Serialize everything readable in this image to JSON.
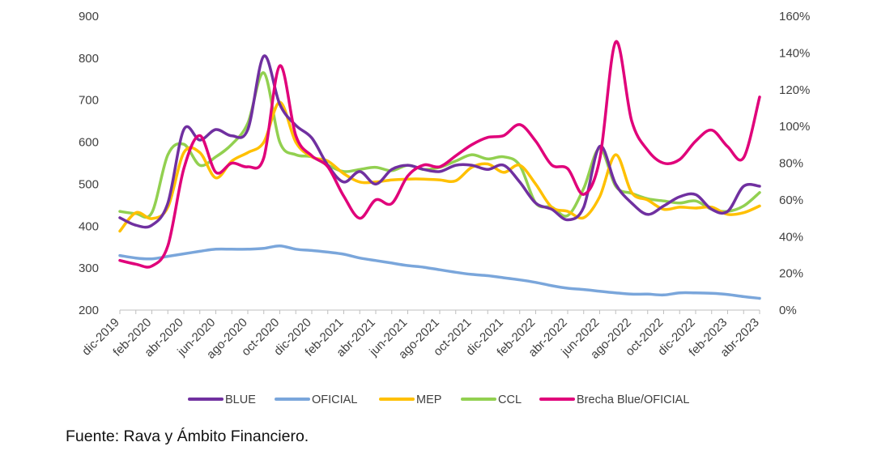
{
  "source": "Fuente: Rava y Ámbito Financiero.",
  "chart_data": {
    "type": "line",
    "title": "",
    "xlabel": "",
    "ylabel": "",
    "ylim": [
      200,
      900
    ],
    "y_ticks": [
      200,
      300,
      400,
      500,
      600,
      700,
      800,
      900
    ],
    "y2lim": [
      0,
      160
    ],
    "y2_ticks": [
      "0%",
      "20%",
      "40%",
      "60%",
      "80%",
      "100%",
      "120%",
      "140%",
      "160%"
    ],
    "grid": false,
    "legend": "bottom",
    "x_labels": [
      "dic-2019",
      "feb-2020",
      "abr-2020",
      "jun-2020",
      "ago-2020",
      "oct-2020",
      "dic-2020",
      "feb-2021",
      "abr-2021",
      "jun-2021",
      "ago-2021",
      "oct-2021",
      "dic-2021",
      "feb-2022",
      "abr-2022",
      "jun-2022",
      "ago-2022",
      "oct-2022",
      "dic-2022",
      "feb-2023",
      "abr-2023"
    ],
    "x": [
      "dic-2019",
      "ene-2020",
      "feb-2020",
      "mar-2020",
      "abr-2020",
      "may-2020",
      "jun-2020",
      "jul-2020",
      "ago-2020",
      "sep-2020",
      "oct-2020",
      "nov-2020",
      "dic-2020",
      "ene-2021",
      "feb-2021",
      "mar-2021",
      "abr-2021",
      "may-2021",
      "jun-2021",
      "jul-2021",
      "ago-2021",
      "sep-2021",
      "oct-2021",
      "nov-2021",
      "dic-2021",
      "ene-2022",
      "feb-2022",
      "mar-2022",
      "abr-2022",
      "may-2022",
      "jun-2022",
      "jul-2022",
      "ago-2022",
      "sep-2022",
      "oct-2022",
      "nov-2022",
      "dic-2022",
      "ene-2023",
      "feb-2023",
      "mar-2023",
      "abr-2023"
    ],
    "series": [
      {
        "name": "BLUE",
        "axis": "left",
        "color": "#7030A0",
        "values": [
          420,
          402,
          402,
          455,
          630,
          605,
          630,
          615,
          630,
          805,
          690,
          640,
          610,
          545,
          505,
          530,
          500,
          535,
          545,
          535,
          530,
          545,
          545,
          535,
          545,
          505,
          455,
          440,
          415,
          445,
          590,
          500,
          455,
          428,
          448,
          470,
          475,
          440,
          435,
          495,
          495
        ]
      },
      {
        "name": "OFICIAL",
        "axis": "left",
        "color": "#7AA6DB",
        "values": [
          330,
          324,
          322,
          328,
          334,
          340,
          345,
          345,
          345,
          347,
          353,
          345,
          342,
          338,
          333,
          324,
          318,
          312,
          306,
          302,
          296,
          290,
          285,
          282,
          277,
          272,
          266,
          258,
          252,
          249,
          245,
          241,
          238,
          238,
          236,
          241,
          241,
          240,
          237,
          232,
          228
        ]
      },
      {
        "name": "MEP",
        "axis": "left",
        "color": "#FFC000",
        "values": [
          388,
          432,
          418,
          445,
          575,
          575,
          515,
          555,
          575,
          600,
          695,
          600,
          565,
          555,
          525,
          505,
          505,
          510,
          512,
          512,
          510,
          508,
          540,
          548,
          528,
          545,
          500,
          445,
          435,
          420,
          470,
          570,
          480,
          462,
          440,
          445,
          443,
          445,
          428,
          432,
          448
        ]
      },
      {
        "name": "CCL",
        "axis": "left",
        "color": "#92D050",
        "values": [
          435,
          430,
          432,
          570,
          595,
          545,
          565,
          595,
          645,
          765,
          600,
          570,
          565,
          545,
          530,
          535,
          540,
          532,
          545,
          535,
          540,
          555,
          570,
          560,
          565,
          545,
          455,
          445,
          425,
          490,
          585,
          495,
          478,
          465,
          460,
          455,
          460,
          440,
          435,
          448,
          480
        ]
      },
      {
        "name": "Brecha Blue/OFICIAL",
        "axis": "right",
        "color": "#E0007A",
        "values": [
          27,
          25,
          24,
          35,
          77,
          95,
          75,
          80,
          78,
          83,
          133,
          95,
          84,
          78,
          62,
          50,
          60,
          58,
          73,
          79,
          78,
          84,
          90,
          94,
          95,
          101,
          92,
          79,
          77,
          63,
          82,
          146,
          103,
          87,
          80,
          82,
          92,
          98,
          89,
          83,
          116
        ]
      }
    ]
  }
}
